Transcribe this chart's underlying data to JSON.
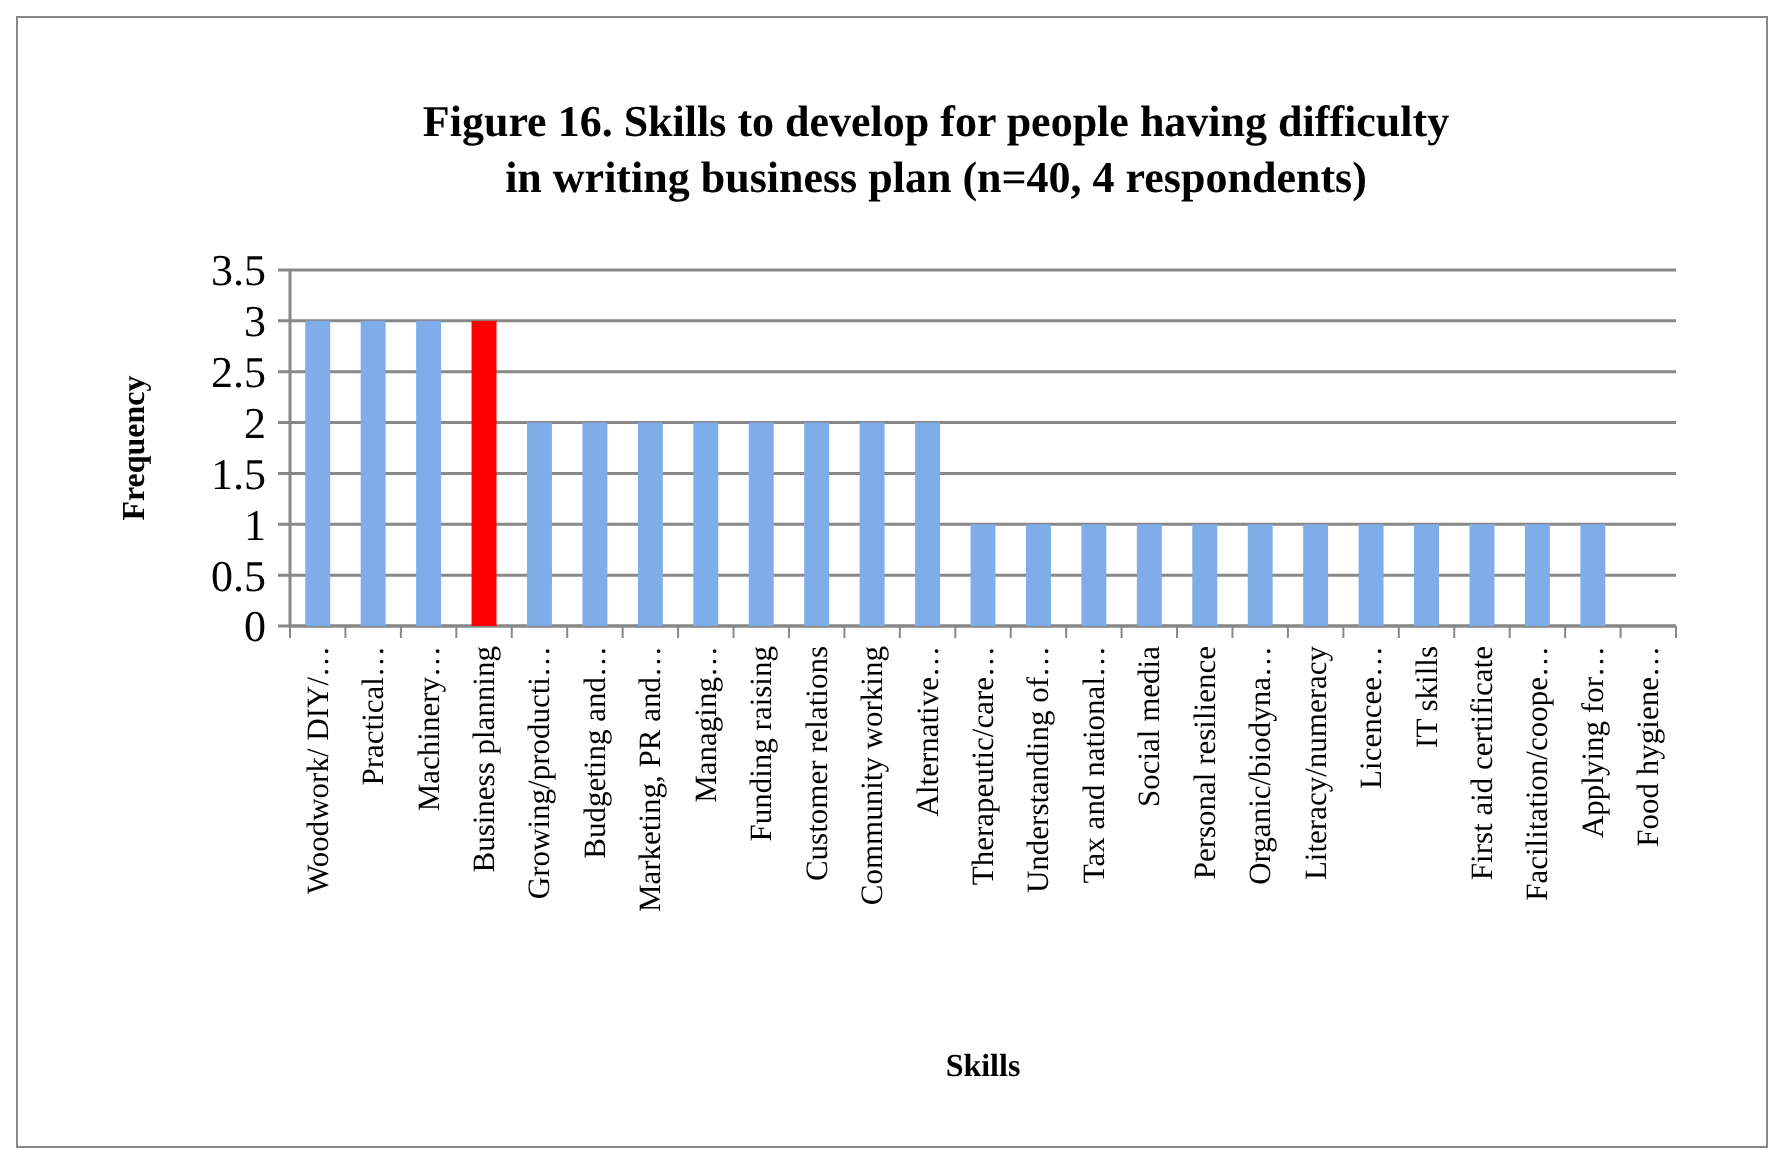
{
  "chart_data": {
    "type": "bar",
    "title": "Figure 16. Skills to develop for people having difficulty in writing business plan (n=40, 4 respondents)",
    "xlabel": "Skills",
    "ylabel": "Frequency",
    "categories": [
      "Woodwork/ DIY/…",
      "Practical…",
      "Machinery…",
      "Business planning",
      "Growing/producti…",
      "Budgeting and…",
      "Marketing, PR and…",
      "Managing…",
      "Funding raising",
      "Customer relations",
      "Community working",
      "Alternative…",
      "Therapeutic/care…",
      "Understanding of…",
      "Tax and national…",
      "Social media",
      "Personal resilience",
      "Organic/biodyna…",
      "Literacy/numeracy",
      "Licencee…",
      "IT skills",
      "First aid certificate",
      "Facilitation/coope…",
      "Applying for…",
      "Food hygiene…"
    ],
    "values": [
      3,
      3,
      3,
      3,
      2,
      2,
      2,
      2,
      2,
      2,
      2,
      2,
      1,
      1,
      1,
      1,
      1,
      1,
      1,
      1,
      1,
      1,
      1,
      1,
      0
    ],
    "colors": [
      "#7fadea",
      "#7fadea",
      "#7fadea",
      "#ff0000",
      "#7fadea",
      "#7fadea",
      "#7fadea",
      "#7fadea",
      "#7fadea",
      "#7fadea",
      "#7fadea",
      "#7fadea",
      "#7fadea",
      "#7fadea",
      "#7fadea",
      "#7fadea",
      "#7fadea",
      "#7fadea",
      "#7fadea",
      "#7fadea",
      "#7fadea",
      "#7fadea",
      "#7fadea",
      "#7fadea",
      "#7fadea"
    ],
    "ylim": [
      0,
      3.5
    ],
    "yticks": [
      0,
      0.5,
      1,
      1.5,
      2,
      2.5,
      3,
      3.5
    ],
    "grid": "y"
  }
}
